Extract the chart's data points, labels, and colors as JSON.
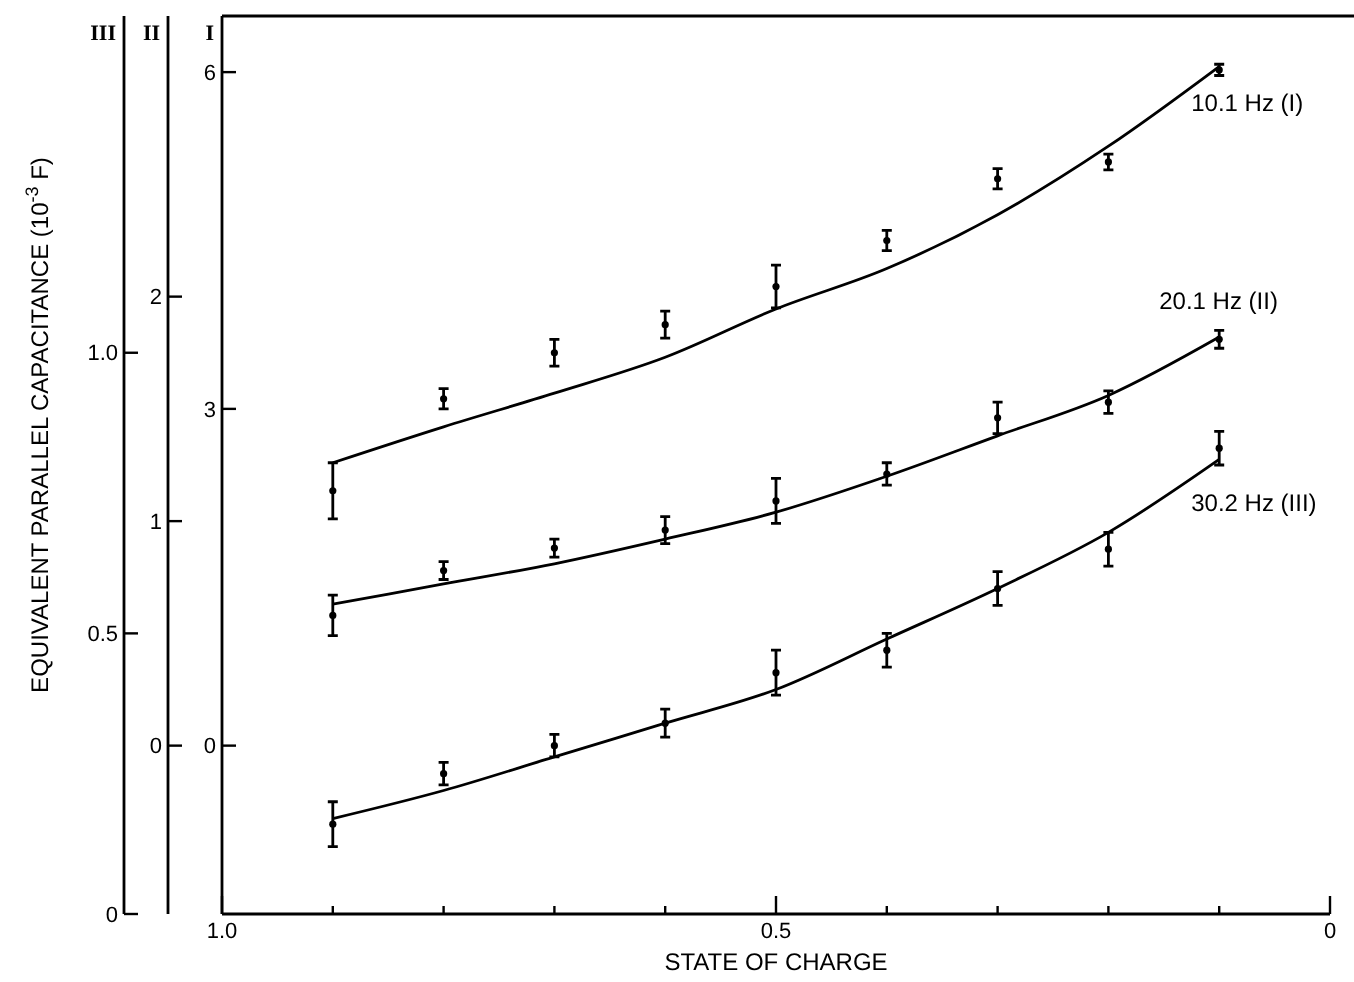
{
  "chart_data": {
    "type": "line",
    "xlabel": "STATE OF CHARGE",
    "ylabel": "EQUIVALENT PARALLEL CAPACITANCE (10$^{-3}$ F)",
    "annotations": [
      "III",
      "II",
      "I"
    ],
    "xlim": [
      1,
      0
    ],
    "xticks": [
      {
        "value": 1,
        "label": "1.0"
      },
      {
        "value": 0.9,
        "label": null
      },
      {
        "value": 0.8,
        "label": null
      },
      {
        "value": 0.7,
        "label": null
      },
      {
        "value": 0.6,
        "label": null
      },
      0.5,
      {
        "value": 0.4,
        "label": null
      },
      {
        "value": 0.3,
        "label": null
      },
      {
        "value": 0.2,
        "label": null
      },
      {
        "value": 0.1,
        "label": null
      },
      0
    ],
    "ylim": [
      0,
      1.6
    ],
    "yticks": [
      0,
      0.5,
      {
        "value": 1,
        "label": "1.0"
      }
    ],
    "y2lim": [
      -0.75,
      3.25
    ],
    "y2ticks": [
      0,
      1,
      2
    ],
    "y3lim": [
      -1.5,
      6.5
    ],
    "y3ticks": [
      0,
      3,
      6
    ],
    "series": [
      {
        "name": "10.1 Hz (I)",
        "axis": "y3",
        "color": "#000000",
        "x": [
          0.9,
          0.8,
          0.7,
          0.6,
          0.5,
          0.4,
          0.3,
          0.2,
          0.1
        ],
        "values": [
          2.52,
          2.84,
          3.14,
          3.46,
          3.89,
          4.25,
          4.73,
          5.34,
          6.05
        ]
      },
      {
        "type": "scatter",
        "marker": "circle",
        "axis": "y3",
        "color": "#000000",
        "x": [
          0.9,
          0.8,
          0.7,
          0.6,
          0.5,
          0.4,
          0.3,
          0.2,
          0.1
        ],
        "values": [
          2.27,
          3.09,
          3.5,
          3.75,
          4.09,
          4.5,
          5.05,
          5.2,
          6.02
        ],
        "errors": [
          0.25,
          0.09,
          0.12,
          0.12,
          0.19,
          0.09,
          0.09,
          0.07,
          0.05
        ]
      },
      {
        "name": "20.1 Hz (II)",
        "axis": "y2",
        "color": "#000000",
        "x": [
          0.9,
          0.8,
          0.7,
          0.6,
          0.5,
          0.4,
          0.3,
          0.2,
          0.1
        ],
        "values": [
          0.63,
          0.72,
          0.81,
          0.92,
          1.04,
          1.2,
          1.38,
          1.56,
          1.82
        ]
      },
      {
        "type": "scatter",
        "marker": "circle",
        "axis": "y2",
        "color": "#000000",
        "x": [
          0.9,
          0.8,
          0.7,
          0.6,
          0.5,
          0.4,
          0.3,
          0.2,
          0.1
        ],
        "values": [
          0.58,
          0.78,
          0.88,
          0.96,
          1.09,
          1.21,
          1.46,
          1.53,
          1.81
        ],
        "errors": [
          0.09,
          0.04,
          0.04,
          0.06,
          0.1,
          0.05,
          0.07,
          0.05,
          0.04
        ]
      },
      {
        "name": "30.2 Hz (III)",
        "axis": "y",
        "color": "#000000",
        "x": [
          0.9,
          0.8,
          0.7,
          0.6,
          0.5,
          0.4,
          0.3,
          0.2,
          0.1
        ],
        "values": [
          0.17,
          0.22,
          0.28,
          0.34,
          0.4,
          0.49,
          0.58,
          0.68,
          0.81
        ]
      },
      {
        "type": "scatter",
        "marker": "circle",
        "axis": "y",
        "color": "#000000",
        "x": [
          0.9,
          0.8,
          0.7,
          0.6,
          0.5,
          0.4,
          0.3,
          0.2,
          0.1
        ],
        "values": [
          0.16,
          0.25,
          0.3,
          0.34,
          0.43,
          0.47,
          0.58,
          0.65,
          0.83
        ],
        "errors": [
          0.04,
          0.02,
          0.02,
          0.025,
          0.04,
          0.03,
          0.03,
          0.03,
          0.03
        ]
      }
    ]
  }
}
